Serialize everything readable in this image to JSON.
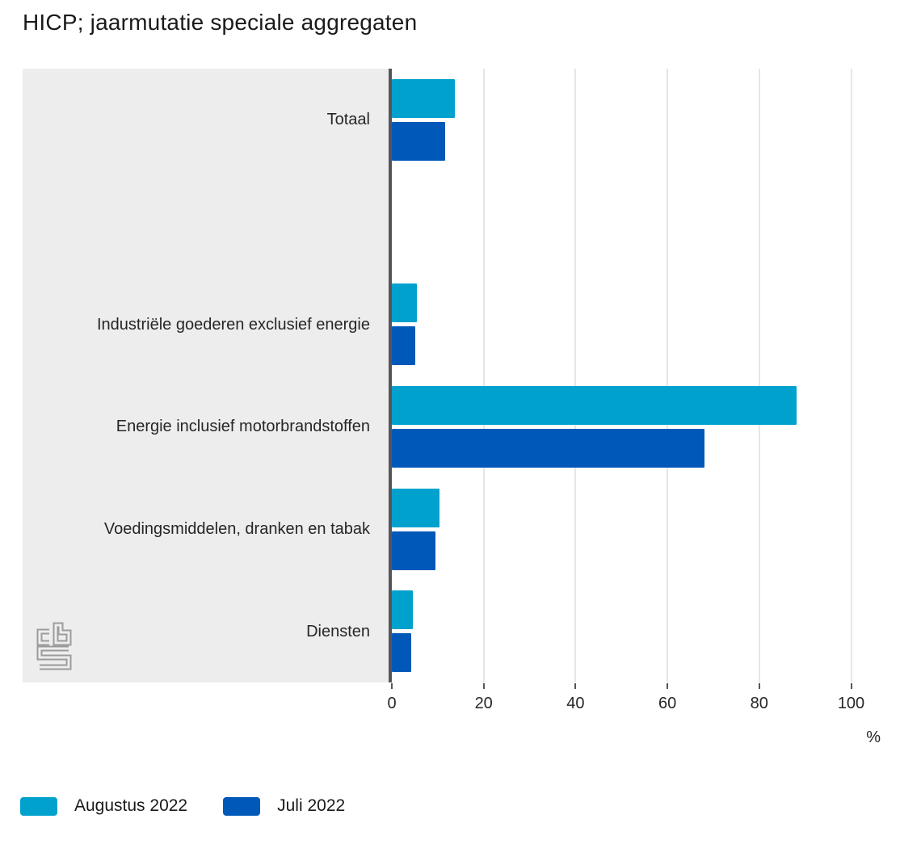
{
  "title": "HICP; jaarmutatie speciale aggregaten",
  "chart_data": {
    "type": "bar",
    "orientation": "horizontal",
    "title": "HICP; jaarmutatie speciale aggregaten",
    "categories": [
      "Totaal",
      "",
      "Industriële goederen exclusief energie",
      "Energie inclusief motorbrandstoffen",
      "Voedingsmiddelen, dranken en tabak",
      "Diensten"
    ],
    "series": [
      {
        "name": "Augustus 2022",
        "color": "#00a1cd",
        "values": [
          13.7,
          null,
          5.4,
          88.2,
          10.4,
          4.5
        ]
      },
      {
        "name": "Juli 2022",
        "color": "#0058b8",
        "values": [
          11.6,
          null,
          5.1,
          68.1,
          9.5,
          4.2
        ]
      }
    ],
    "xlabel": "%",
    "xticks": [
      0,
      20,
      40,
      60,
      80,
      100
    ],
    "xlim": [
      0,
      108
    ],
    "grid": true,
    "legend_position": "bottom",
    "colors": {
      "category_panel": "#ededed",
      "axis_line": "#55565b",
      "gridline": "#e6e6e6",
      "text": "#262626"
    },
    "logo": "cbs-logo"
  }
}
